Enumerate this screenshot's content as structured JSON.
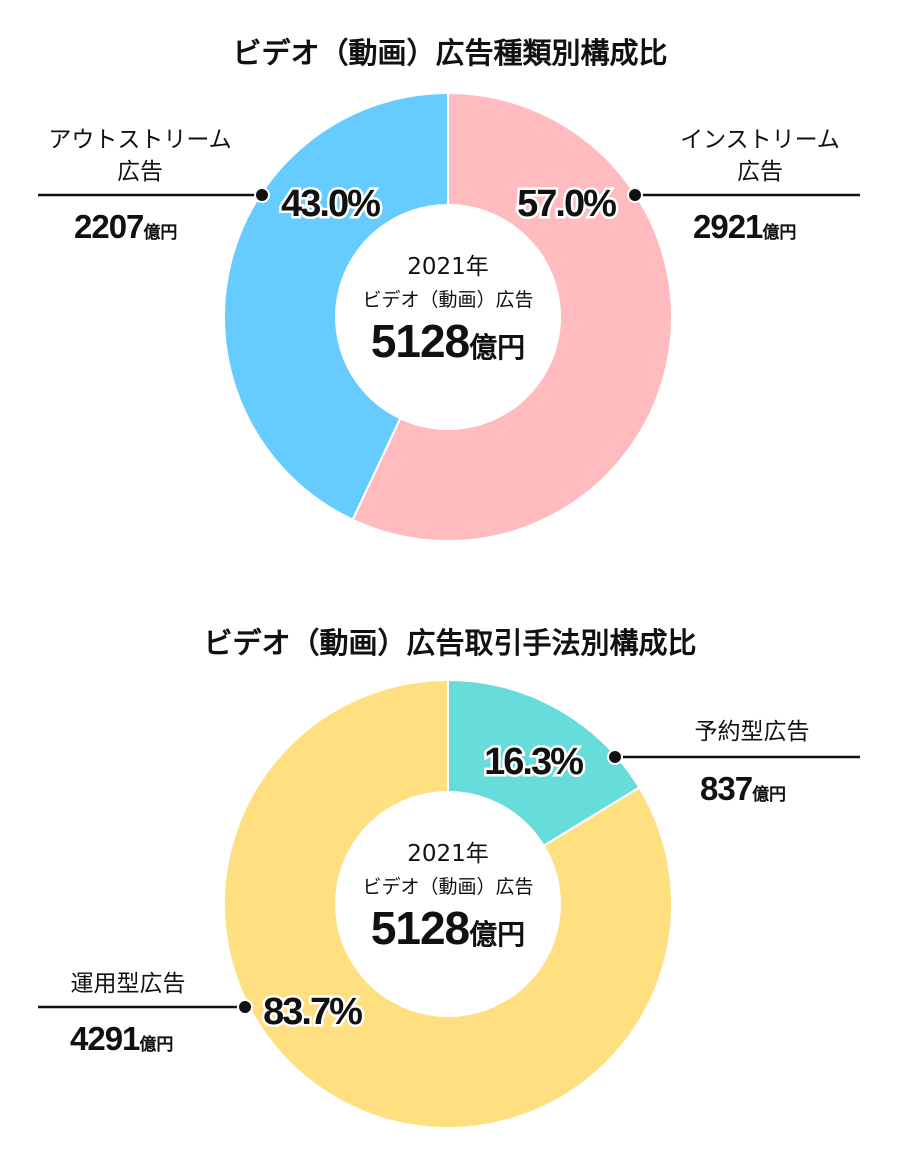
{
  "chart_data": [
    {
      "type": "pie",
      "title": "ビデオ（動画）広告種類別構成比",
      "center": {
        "year": "2021年",
        "label": "ビデオ（動画）広告",
        "total": "5128",
        "unit": "億円"
      },
      "slices": [
        {
          "name_line1": "インストリーム",
          "name_line2": "広告",
          "percent": 57.0,
          "percent_label": "57.0%",
          "value": "2921",
          "unit": "億円",
          "color": "#FFBBBE"
        },
        {
          "name_line1": "アウトストリーム",
          "name_line2": "広告",
          "percent": 43.0,
          "percent_label": "43.0%",
          "value": "2207",
          "unit": "億円",
          "color": "#66CCFF"
        }
      ]
    },
    {
      "type": "pie",
      "title": "ビデオ（動画）広告取引手法別構成比",
      "center": {
        "year": "2021年",
        "label": "ビデオ（動画）広告",
        "total": "5128",
        "unit": "億円"
      },
      "slices": [
        {
          "name_line1": "予約型広告",
          "percent": 16.3,
          "percent_label": "16.3%",
          "value": "837",
          "unit": "億円",
          "color": "#66DDDA"
        },
        {
          "name_line1": "運用型広告",
          "percent": 83.7,
          "percent_label": "83.7%",
          "value": "4291",
          "unit": "億円",
          "color": "#FFDF80"
        }
      ]
    }
  ]
}
